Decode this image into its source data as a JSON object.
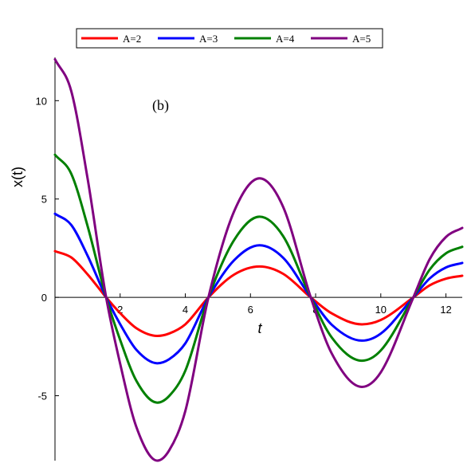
{
  "chart_data": {
    "type": "line",
    "annotation": "(b)",
    "xlabel": "t",
    "ylabel": "x(t)",
    "xlim": [
      0,
      12.5
    ],
    "ylim": [
      -8.3,
      12.2
    ],
    "xticks": [
      2,
      4,
      6,
      8,
      10,
      12
    ],
    "xtick_labels": [
      "2",
      "4",
      "6",
      "8",
      "10",
      "12"
    ],
    "yticks": [
      -5,
      0,
      5,
      10
    ],
    "ytick_labels": [
      "-5",
      "0",
      "5",
      "10"
    ],
    "legend_position": "top",
    "grid": false,
    "x": [
      0,
      0.5,
      1,
      1.57,
      2,
      2.5,
      3.14,
      3.5,
      4,
      4.71,
      5.5,
      6.28,
      7,
      7.85,
      8.5,
      9.42,
      10,
      11,
      11.5,
      12,
      12.5
    ],
    "series": [
      {
        "name": "A=2",
        "color": "#ff0000",
        "values": [
          2.35,
          2.03,
          1.17,
          0.0,
          -0.8,
          -1.57,
          -1.96,
          -1.84,
          -1.37,
          0.0,
          1.16,
          1.57,
          1.2,
          0.0,
          -0.82,
          -1.37,
          -1.15,
          0.0,
          0.61,
          0.95,
          1.1
        ]
      },
      {
        "name": "A=3",
        "color": "#0000ff",
        "values": [
          4.25,
          3.68,
          2.12,
          0.0,
          -1.36,
          -2.67,
          -3.35,
          -3.15,
          -2.34,
          0.0,
          1.89,
          2.65,
          2.02,
          0.0,
          -1.4,
          -2.2,
          -1.84,
          0.0,
          0.96,
          1.52,
          1.75
        ]
      },
      {
        "name": "A=4",
        "color": "#008000",
        "values": [
          7.25,
          6.28,
          3.63,
          0.0,
          -2.16,
          -4.25,
          -5.35,
          -5.02,
          -3.73,
          0.0,
          2.92,
          4.1,
          3.12,
          0.0,
          -2.05,
          -3.22,
          -2.7,
          0.0,
          1.41,
          2.24,
          2.57
        ]
      },
      {
        "name": "A=5",
        "color": "#800080",
        "values": [
          12.1,
          10.48,
          6.05,
          0.0,
          -3.37,
          -6.6,
          -8.3,
          -7.79,
          -5.78,
          0.0,
          4.38,
          6.05,
          4.61,
          0.0,
          -2.87,
          -4.55,
          -3.81,
          0.0,
          1.94,
          3.07,
          3.53
        ]
      }
    ]
  }
}
